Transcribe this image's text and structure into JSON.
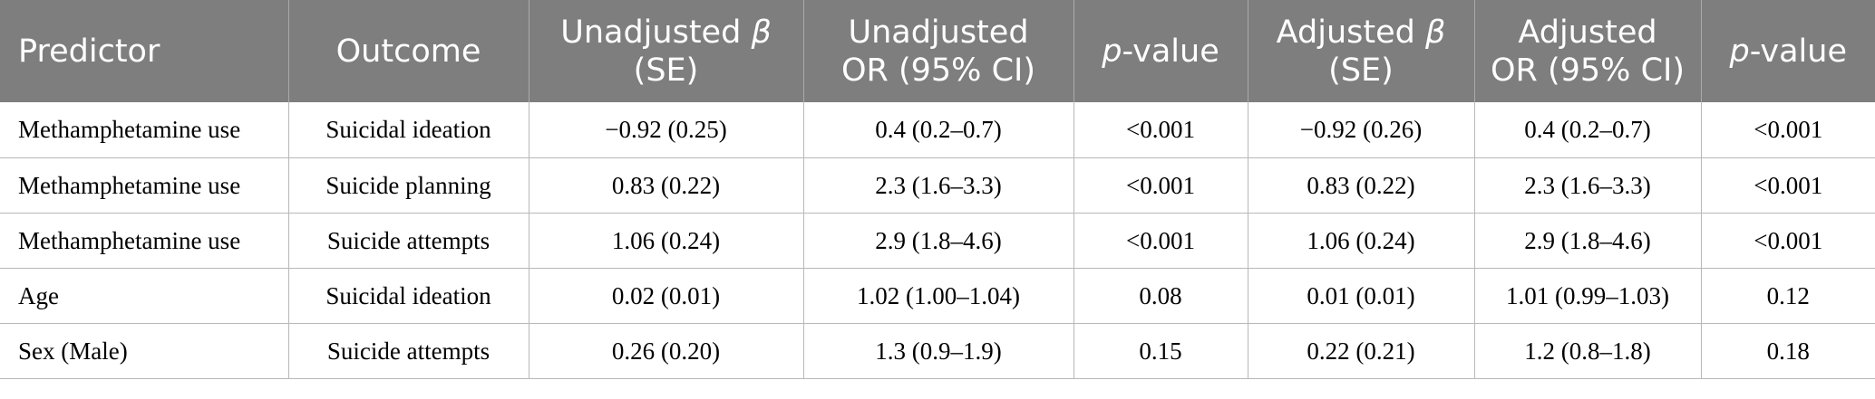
{
  "headers": {
    "predictor": "Predictor",
    "outcome": "Outcome",
    "unadj_beta_a": "Unadjusted ",
    "beta_symbol": "β",
    "se": "(SE)",
    "unadj_or_a": "Unadjusted",
    "or_ci": "OR (95% CI)",
    "p_italic": "p",
    "p_rest": "-value",
    "adj_beta_a": "Adjusted ",
    "adj_or_a": "Adjusted"
  },
  "rows": [
    [
      "Methamphetamine use",
      "Suicidal ideation",
      "−0.92 (0.25)",
      "0.4 (0.2–0.7)",
      "<0.001",
      "−0.92 (0.26)",
      "0.4 (0.2–0.7)",
      "<0.001"
    ],
    [
      "Methamphetamine use",
      "Suicide planning",
      "0.83 (0.22)",
      "2.3 (1.6–3.3)",
      "<0.001",
      "0.83 (0.22)",
      "2.3 (1.6–3.3)",
      "<0.001"
    ],
    [
      "Methamphetamine use",
      "Suicide attempts",
      "1.06 (0.24)",
      "2.9 (1.8–4.6)",
      "<0.001",
      "1.06 (0.24)",
      "2.9 (1.8–4.6)",
      "<0.001"
    ],
    [
      "Age",
      "Suicidal ideation",
      "0.02 (0.01)",
      "1.02 (1.00–1.04)",
      "0.08",
      "0.01 (0.01)",
      "1.01 (0.99–1.03)",
      "0.12"
    ],
    [
      "Sex (Male)",
      "Suicide attempts",
      "0.26 (0.20)",
      "1.3 (0.9–1.9)",
      "0.15",
      "0.22 (0.21)",
      "1.2 (0.8–1.8)",
      "0.18"
    ]
  ]
}
